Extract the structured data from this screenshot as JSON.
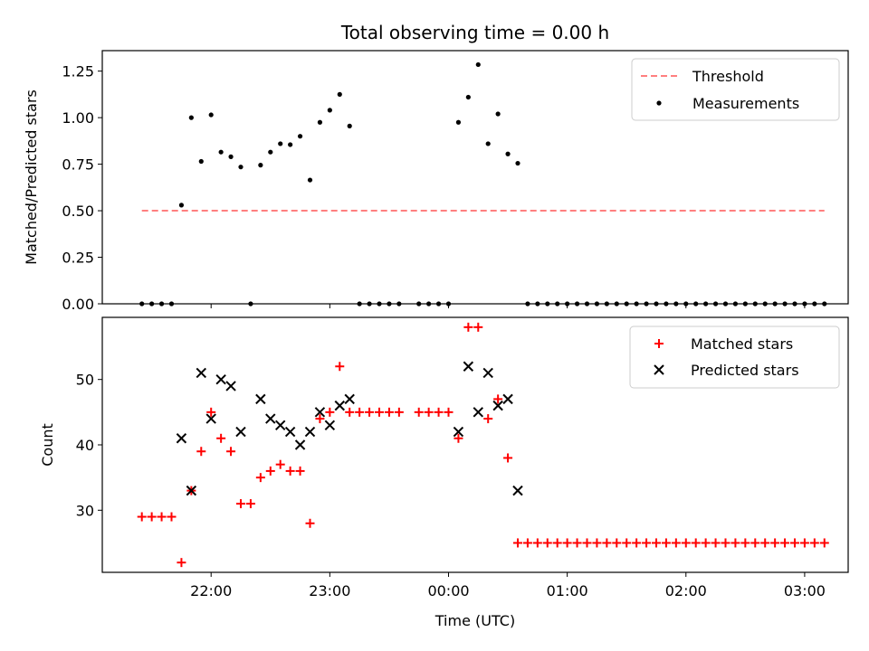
{
  "chart_data": [
    {
      "type": "scatter",
      "title": "Total observing time = 0.00 h",
      "xlabel": "",
      "ylabel": "Matched/Predicted stars",
      "ylim": [
        0,
        1.36
      ],
      "yticks": [
        0,
        0.25,
        0.5,
        0.75,
        1.0,
        1.25
      ],
      "yticklabels": [
        "0.00",
        "0.25",
        "0.50",
        "0.75",
        "1.00",
        "1.25"
      ],
      "grid": false,
      "legend_position": "top-right",
      "threshold": {
        "name": "Threshold",
        "value": 0.5,
        "x_range": [
          "21:25",
          "03:10"
        ],
        "color": "#ff7f7f",
        "style": "dashed"
      },
      "series": [
        {
          "name": "Measurements",
          "marker": "dot",
          "color": "#000000",
          "points": [
            [
              "21:25",
              0
            ],
            [
              "21:30",
              0
            ],
            [
              "21:35",
              0
            ],
            [
              "21:40",
              0
            ],
            [
              "21:45",
              0.53
            ],
            [
              "21:50",
              1.0
            ],
            [
              "21:55",
              0.765
            ],
            [
              "22:00",
              1.015
            ],
            [
              "22:05",
              0.815
            ],
            [
              "22:10",
              0.79
            ],
            [
              "22:15",
              0.735
            ],
            [
              "22:20",
              0
            ],
            [
              "22:25",
              0.745
            ],
            [
              "22:30",
              0.815
            ],
            [
              "22:35",
              0.86
            ],
            [
              "22:40",
              0.855
            ],
            [
              "22:45",
              0.9
            ],
            [
              "22:50",
              0.665
            ],
            [
              "22:55",
              0.975
            ],
            [
              "23:00",
              1.04
            ],
            [
              "23:05",
              1.125
            ],
            [
              "23:10",
              0.955
            ],
            [
              "23:15",
              0
            ],
            [
              "23:20",
              0
            ],
            [
              "23:25",
              0
            ],
            [
              "23:30",
              0
            ],
            [
              "23:35",
              0
            ],
            [
              "23:45",
              0
            ],
            [
              "23:50",
              0
            ],
            [
              "23:55",
              0
            ],
            [
              "00:00",
              0
            ],
            [
              "00:05",
              0.975
            ],
            [
              "00:10",
              1.11
            ],
            [
              "00:15",
              1.285
            ],
            [
              "00:20",
              0.86
            ],
            [
              "00:25",
              1.02
            ],
            [
              "00:30",
              0.805
            ],
            [
              "00:35",
              0.755
            ],
            [
              "00:40",
              0
            ],
            [
              "00:45",
              0
            ],
            [
              "00:50",
              0
            ],
            [
              "00:55",
              0
            ],
            [
              "01:00",
              0
            ],
            [
              "01:05",
              0
            ],
            [
              "01:10",
              0
            ],
            [
              "01:15",
              0
            ],
            [
              "01:20",
              0
            ],
            [
              "01:25",
              0
            ],
            [
              "01:30",
              0
            ],
            [
              "01:35",
              0
            ],
            [
              "01:40",
              0
            ],
            [
              "01:45",
              0
            ],
            [
              "01:50",
              0
            ],
            [
              "01:55",
              0
            ],
            [
              "02:00",
              0
            ],
            [
              "02:05",
              0
            ],
            [
              "02:10",
              0
            ],
            [
              "02:15",
              0
            ],
            [
              "02:20",
              0
            ],
            [
              "02:25",
              0
            ],
            [
              "02:30",
              0
            ],
            [
              "02:35",
              0
            ],
            [
              "02:40",
              0
            ],
            [
              "02:45",
              0
            ],
            [
              "02:50",
              0
            ],
            [
              "02:55",
              0
            ],
            [
              "03:00",
              0
            ],
            [
              "03:05",
              0
            ],
            [
              "03:10",
              0
            ]
          ]
        }
      ]
    },
    {
      "type": "scatter",
      "title": "",
      "xlabel": "Time (UTC)",
      "ylabel": "Count",
      "ylim": [
        20.5,
        59.5
      ],
      "yticks": [
        30,
        40,
        50
      ],
      "yticklabels": [
        "30",
        "40",
        "50"
      ],
      "xticks": [
        "22:00",
        "23:00",
        "00:00",
        "01:00",
        "02:00",
        "03:00"
      ],
      "xticklabels": [
        "22:00",
        "23:00",
        "00:00",
        "01:00",
        "02:00",
        "03:00"
      ],
      "grid": false,
      "legend_position": "top-right",
      "series": [
        {
          "name": "Matched stars",
          "marker": "plus",
          "color": "#ff0000",
          "points": [
            [
              "21:25",
              29
            ],
            [
              "21:30",
              29
            ],
            [
              "21:35",
              29
            ],
            [
              "21:40",
              29
            ],
            [
              "21:45",
              22
            ],
            [
              "21:50",
              33
            ],
            [
              "21:55",
              39
            ],
            [
              "22:00",
              45
            ],
            [
              "22:05",
              41
            ],
            [
              "22:10",
              39
            ],
            [
              "22:15",
              31
            ],
            [
              "22:20",
              31
            ],
            [
              "22:25",
              35
            ],
            [
              "22:30",
              36
            ],
            [
              "22:35",
              37
            ],
            [
              "22:40",
              36
            ],
            [
              "22:45",
              36
            ],
            [
              "22:50",
              28
            ],
            [
              "22:55",
              44
            ],
            [
              "23:00",
              45
            ],
            [
              "23:05",
              52
            ],
            [
              "23:10",
              45
            ],
            [
              "23:15",
              45
            ],
            [
              "23:20",
              45
            ],
            [
              "23:25",
              45
            ],
            [
              "23:30",
              45
            ],
            [
              "23:35",
              45
            ],
            [
              "23:45",
              45
            ],
            [
              "23:50",
              45
            ],
            [
              "23:55",
              45
            ],
            [
              "00:00",
              45
            ],
            [
              "00:05",
              41
            ],
            [
              "00:10",
              58
            ],
            [
              "00:15",
              58
            ],
            [
              "00:20",
              44
            ],
            [
              "00:25",
              47
            ],
            [
              "00:30",
              38
            ],
            [
              "00:35",
              25
            ],
            [
              "00:40",
              25
            ],
            [
              "00:45",
              25
            ],
            [
              "00:50",
              25
            ],
            [
              "00:55",
              25
            ],
            [
              "01:00",
              25
            ],
            [
              "01:05",
              25
            ],
            [
              "01:10",
              25
            ],
            [
              "01:15",
              25
            ],
            [
              "01:20",
              25
            ],
            [
              "01:25",
              25
            ],
            [
              "01:30",
              25
            ],
            [
              "01:35",
              25
            ],
            [
              "01:40",
              25
            ],
            [
              "01:45",
              25
            ],
            [
              "01:50",
              25
            ],
            [
              "01:55",
              25
            ],
            [
              "02:00",
              25
            ],
            [
              "02:05",
              25
            ],
            [
              "02:10",
              25
            ],
            [
              "02:15",
              25
            ],
            [
              "02:20",
              25
            ],
            [
              "02:25",
              25
            ],
            [
              "02:30",
              25
            ],
            [
              "02:35",
              25
            ],
            [
              "02:40",
              25
            ],
            [
              "02:45",
              25
            ],
            [
              "02:50",
              25
            ],
            [
              "02:55",
              25
            ],
            [
              "03:00",
              25
            ],
            [
              "03:05",
              25
            ],
            [
              "03:10",
              25
            ]
          ]
        },
        {
          "name": "Predicted stars",
          "marker": "x",
          "color": "#000000",
          "points": [
            [
              "21:45",
              41
            ],
            [
              "21:50",
              33
            ],
            [
              "21:55",
              51
            ],
            [
              "22:00",
              44
            ],
            [
              "22:05",
              50
            ],
            [
              "22:10",
              49
            ],
            [
              "22:15",
              42
            ],
            [
              "22:25",
              47
            ],
            [
              "22:30",
              44
            ],
            [
              "22:35",
              43
            ],
            [
              "22:40",
              42
            ],
            [
              "22:45",
              40
            ],
            [
              "22:50",
              42
            ],
            [
              "22:55",
              45
            ],
            [
              "23:00",
              43
            ],
            [
              "23:05",
              46
            ],
            [
              "23:10",
              47
            ],
            [
              "00:05",
              42
            ],
            [
              "00:10",
              52
            ],
            [
              "00:15",
              45
            ],
            [
              "00:20",
              51
            ],
            [
              "00:25",
              46
            ],
            [
              "00:30",
              47
            ],
            [
              "00:35",
              33
            ]
          ]
        }
      ]
    }
  ]
}
